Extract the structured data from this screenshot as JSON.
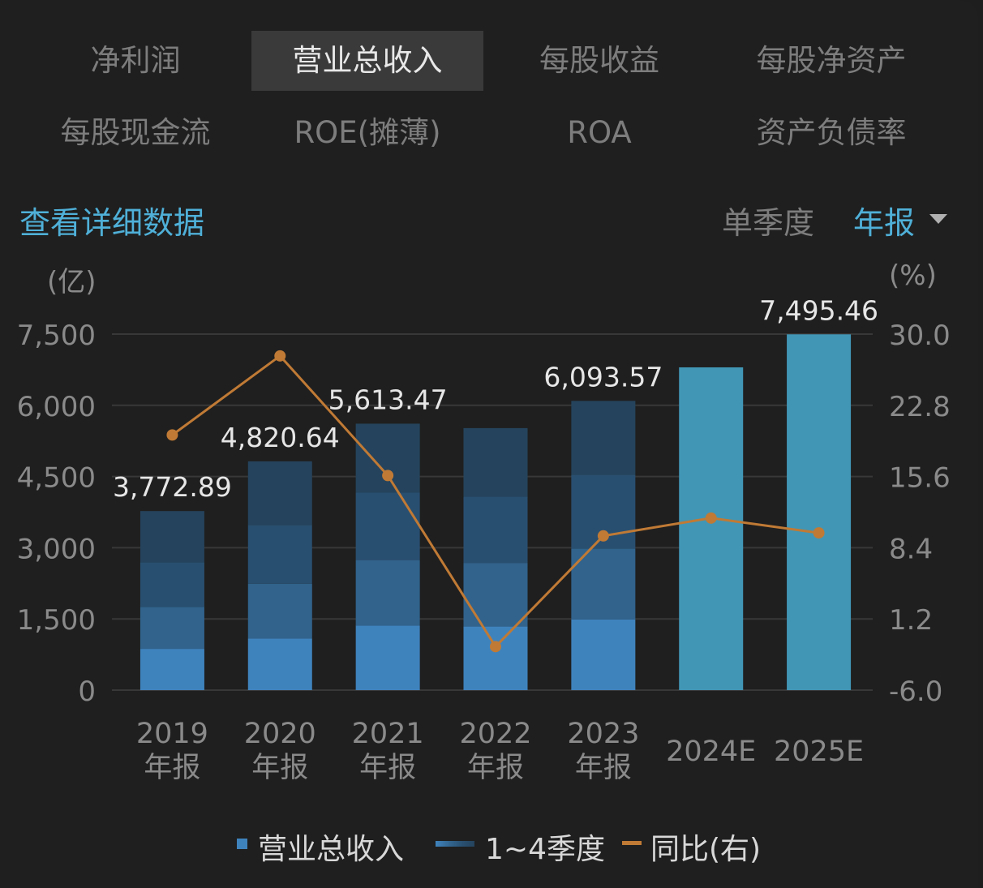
{
  "tabs_row1": [
    "净利润",
    "营业总收入",
    "每股收益",
    "每股净资产"
  ],
  "tabs_row2": [
    "每股现金流",
    "ROE(摊薄)",
    "ROA",
    "资产负债率"
  ],
  "active_tab": "营业总收入",
  "detail_link": "查看详细数据",
  "period_options": {
    "quarterly": "单季度",
    "annual": "年报"
  },
  "selected_period": "年报",
  "colors": {
    "q1": "#3f83bd",
    "q2": "#31638c",
    "q3": "#294f70",
    "q4": "#25435c",
    "estimate": "#4196b5",
    "yoy_line": "#c07a35",
    "accent": "#4fb0d8"
  },
  "legend": {
    "revenue": "营业总收入",
    "quarters": "1~4季度",
    "yoy": "同比(右)"
  },
  "chart_data": {
    "type": "bar",
    "left_unit": "(亿)",
    "right_unit": "(%)",
    "categories": [
      [
        "2019",
        "年报"
      ],
      [
        "2020",
        "年报"
      ],
      [
        "2021",
        "年报"
      ],
      [
        "2022",
        "年报"
      ],
      [
        "2023",
        "年报"
      ],
      [
        "2024E"
      ],
      [
        "2025E"
      ]
    ],
    "ylim": [
      0,
      7500
    ],
    "yticks": [
      "7,500",
      "6,000",
      "4,500",
      "3,000",
      "1,500",
      "0"
    ],
    "ytick_values": [
      7500,
      6000,
      4500,
      3000,
      1500,
      0
    ],
    "y2lim": [
      -6.0,
      30.0
    ],
    "y2ticks": [
      "30.0",
      "22.8",
      "15.6",
      "8.4",
      "1.2",
      "-6.0"
    ],
    "y2tick_values": [
      30.0,
      22.8,
      15.6,
      8.4,
      1.2,
      -6.0
    ],
    "quarter_series": [
      {
        "name": "Q1",
        "values": [
          870,
          1090,
          1360,
          1340,
          1490,
          null,
          null
        ]
      },
      {
        "name": "Q2",
        "values": [
          880,
          1150,
          1380,
          1340,
          1490,
          null,
          null
        ]
      },
      {
        "name": "Q3",
        "values": [
          940,
          1240,
          1420,
          1400,
          1560,
          null,
          null
        ]
      },
      {
        "name": "Q4",
        "values": [
          1082.89,
          1340.64,
          1453.47,
          1440,
          1553.57,
          null,
          null
        ]
      }
    ],
    "totals": [
      3772.89,
      4820.64,
      5613.47,
      5520,
      6093.57,
      6800,
      7495.46
    ],
    "total_labels": [
      "3,772.89",
      "4,820.64",
      "5,613.47",
      "",
      "6,093.57",
      "",
      "7,495.46"
    ],
    "estimate": [
      false,
      false,
      false,
      false,
      false,
      true,
      true
    ],
    "yoy": [
      19.8,
      27.8,
      15.7,
      -1.6,
      9.6,
      11.4,
      9.9
    ]
  }
}
